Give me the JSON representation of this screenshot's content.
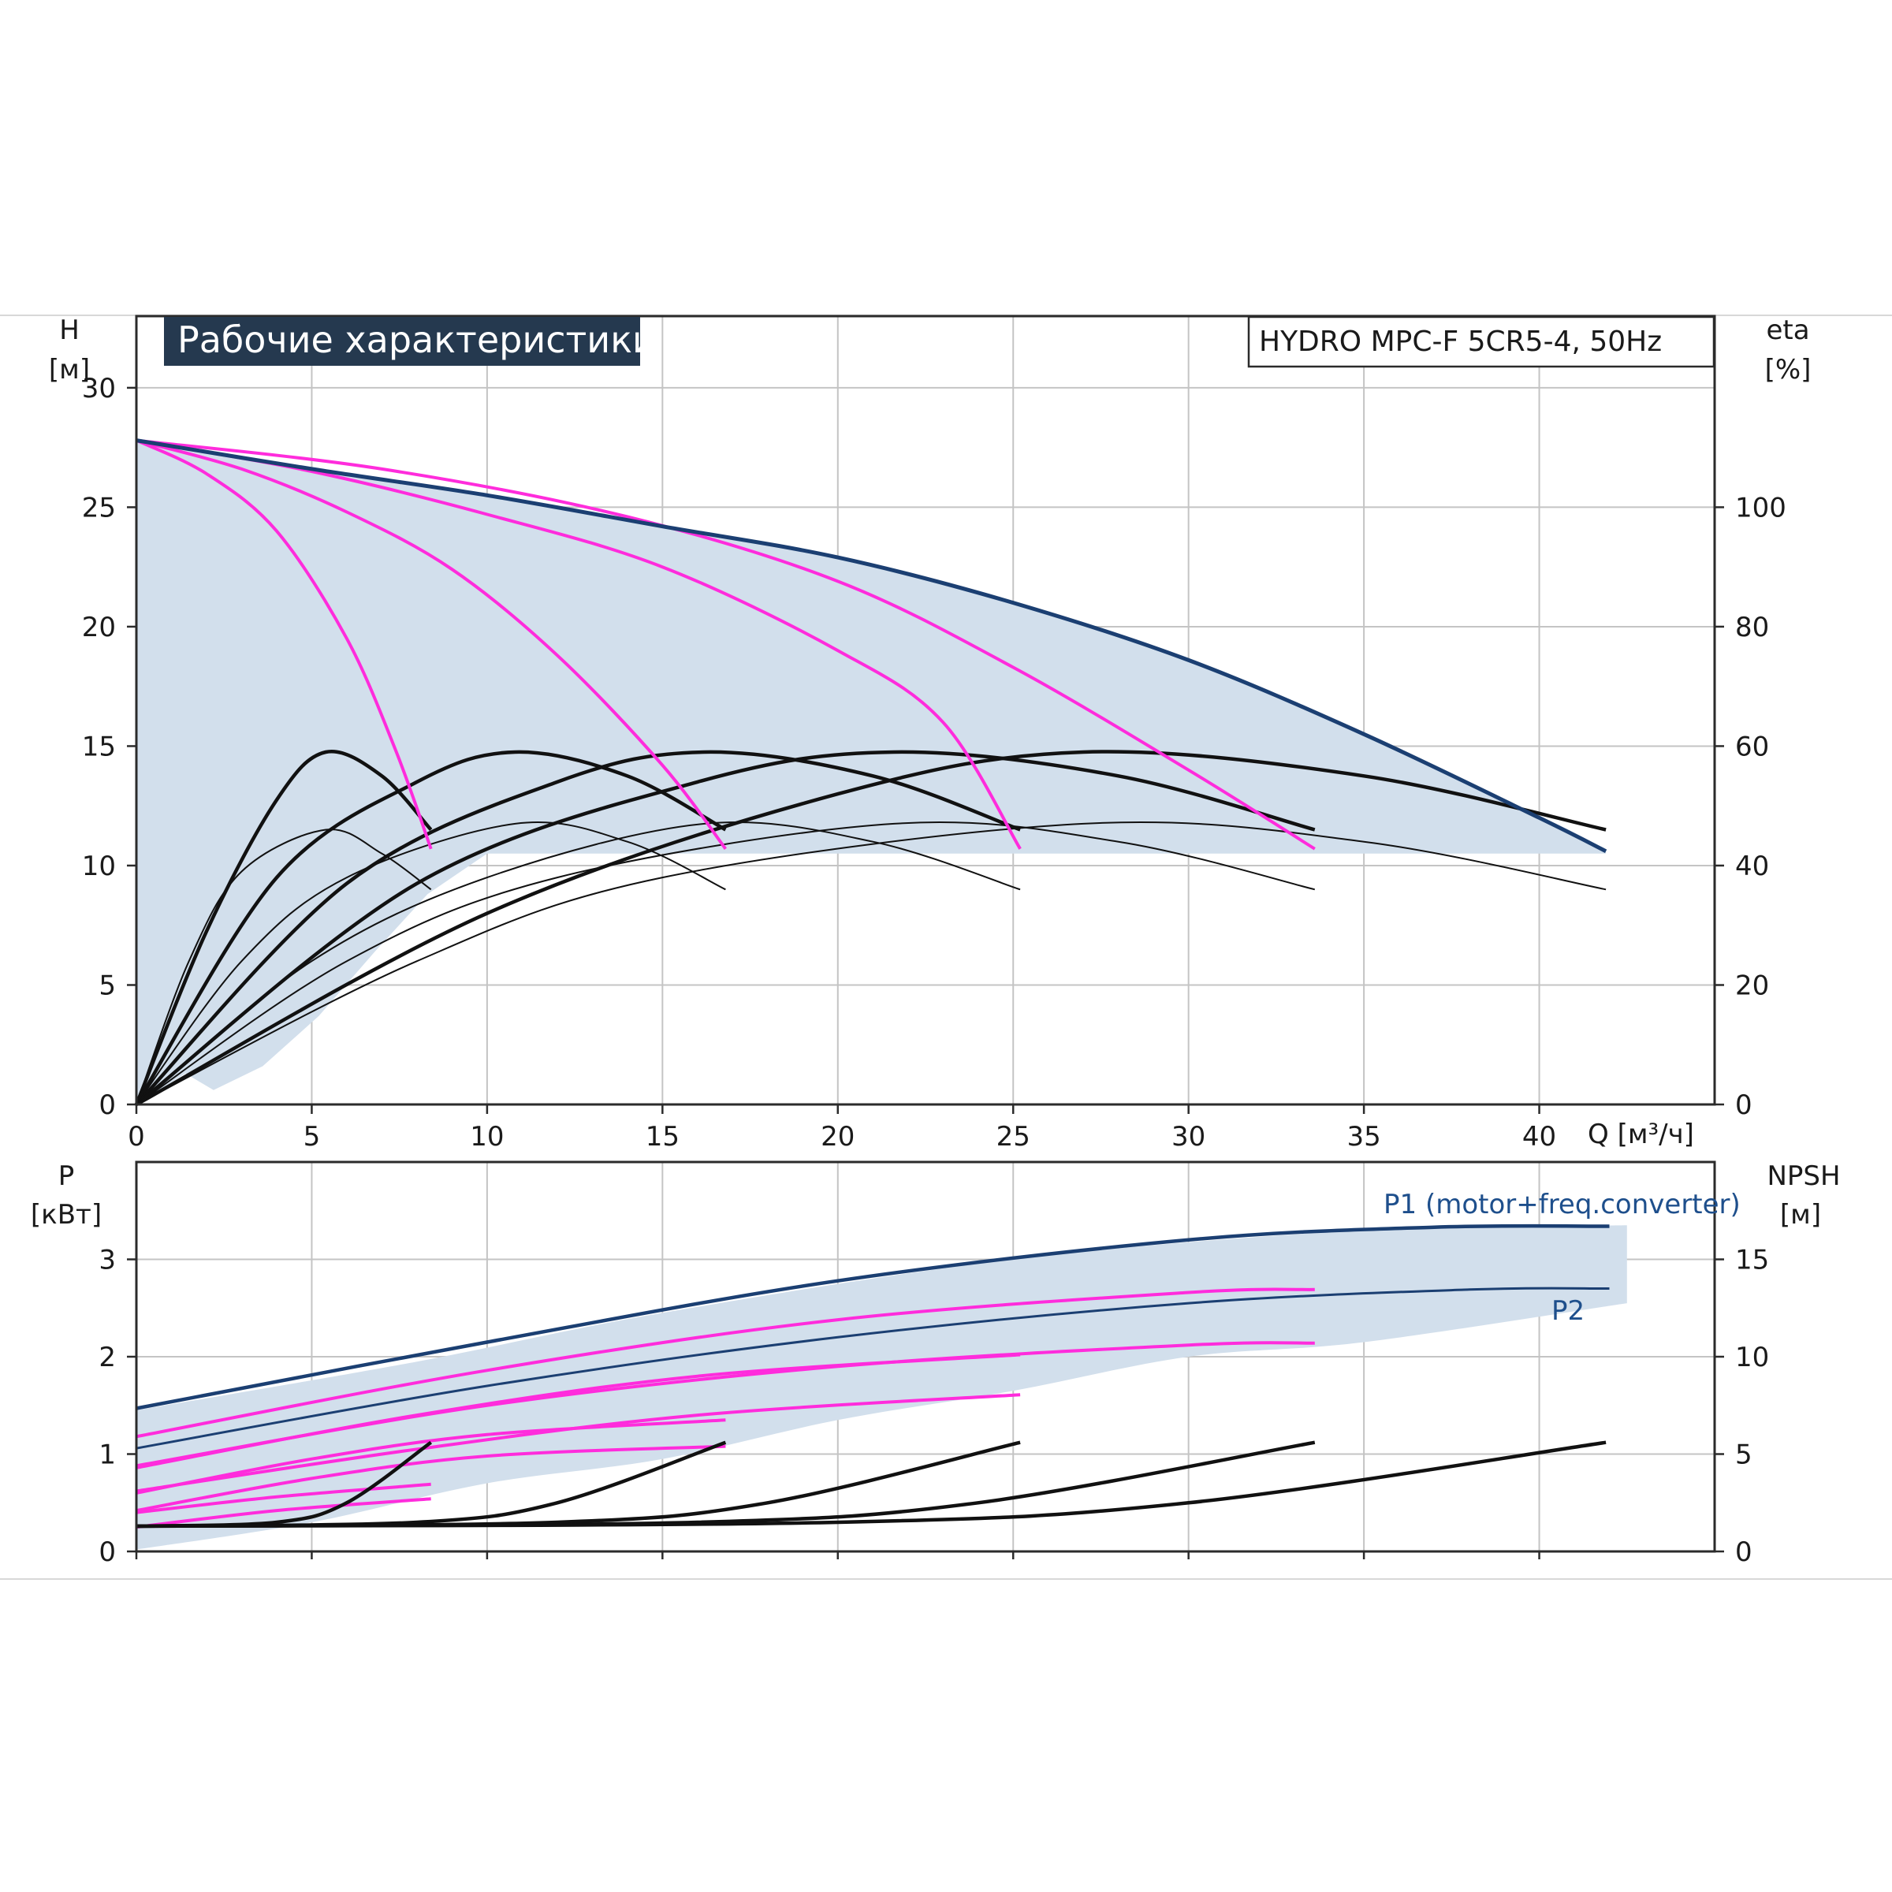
{
  "chart_data": [
    {
      "type": "line",
      "title": "Рабочие характеристики",
      "model": "HYDRO MPC-F 5CR5-4, 50Hz",
      "xlabel": "Q [м³/ч]",
      "ylabel_left": {
        "name": "H",
        "unit": "[м]"
      },
      "ylabel_right": {
        "name": "eta",
        "unit": "[%]"
      },
      "xlim": [
        0,
        45
      ],
      "ylim": [
        0,
        33
      ],
      "eta_lim": [
        0,
        132
      ],
      "x_ticks": [
        0,
        5,
        10,
        15,
        20,
        25,
        30,
        35,
        40
      ],
      "y_ticks": [
        0,
        5,
        10,
        15,
        20,
        25,
        30
      ],
      "eta_ticks": [
        0,
        20,
        40,
        60,
        80,
        100
      ],
      "colors": {
        "envelope": "#d2dfec",
        "max_curve": "#1b3f72",
        "speed_curve": "#ff2cdc",
        "eff_curve": "#111111",
        "grid": "#c4c4c4"
      },
      "operating_range": {
        "min_head": 10.5,
        "upper": [
          [
            0,
            27.8
          ],
          [
            5,
            26.6
          ],
          [
            10,
            25.5
          ],
          [
            15,
            24.2
          ],
          [
            20,
            22.9
          ],
          [
            25,
            21.0
          ],
          [
            30,
            18.6
          ],
          [
            35,
            15.5
          ],
          [
            40,
            12.0
          ],
          [
            41.9,
            10.6
          ]
        ],
        "lower": [
          [
            0,
            0
          ],
          [
            1.4,
            1.3
          ],
          [
            2.2,
            0.6
          ],
          [
            3.6,
            1.6
          ],
          [
            5.2,
            3.7
          ],
          [
            6.8,
            6.4
          ],
          [
            8.3,
            8.8
          ],
          [
            10,
            10.5
          ],
          [
            41.9,
            10.5
          ]
        ]
      },
      "max_speed_curve": [
        [
          0,
          27.8
        ],
        [
          5,
          26.6
        ],
        [
          10,
          25.5
        ],
        [
          15,
          24.2
        ],
        [
          20,
          22.9
        ],
        [
          25,
          21.0
        ],
        [
          30,
          18.6
        ],
        [
          35,
          15.5
        ],
        [
          40,
          12.0
        ],
        [
          41.9,
          10.6
        ]
      ],
      "speed_curves": [
        [
          [
            0,
            27.8
          ],
          [
            2,
            26.4
          ],
          [
            4,
            24.0
          ],
          [
            6,
            19.5
          ],
          [
            7.4,
            14.8
          ],
          [
            8.4,
            10.7
          ]
        ],
        [
          [
            0,
            27.8
          ],
          [
            3,
            26.6
          ],
          [
            6,
            24.8
          ],
          [
            9,
            22.4
          ],
          [
            12,
            18.8
          ],
          [
            15,
            14.2
          ],
          [
            16.8,
            10.7
          ]
        ],
        [
          [
            0,
            27.8
          ],
          [
            5,
            26.5
          ],
          [
            10,
            24.7
          ],
          [
            15,
            22.5
          ],
          [
            20,
            19.0
          ],
          [
            23,
            16.0
          ],
          [
            25.2,
            10.7
          ]
        ],
        [
          [
            0,
            27.8
          ],
          [
            7,
            26.6
          ],
          [
            14,
            24.6
          ],
          [
            20,
            21.9
          ],
          [
            25,
            18.3
          ],
          [
            30,
            14.0
          ],
          [
            33.6,
            10.7
          ]
        ]
      ],
      "system_efficiency_curves": [
        {
          "pumps": 1,
          "points": [
            [
              0,
              0
            ],
            [
              2,
              29
            ],
            [
              4,
              51
            ],
            [
              5.4,
              59
            ],
            [
              7,
              55
            ],
            [
              8.4,
              46
            ]
          ]
        },
        {
          "pumps": 2,
          "points": [
            [
              0,
              0
            ],
            [
              4,
              38
            ],
            [
              8,
              54
            ],
            [
              10.8,
              59
            ],
            [
              14,
              55
            ],
            [
              16.8,
              46
            ]
          ]
        },
        {
          "pumps": 3,
          "points": [
            [
              0,
              0
            ],
            [
              6,
              37
            ],
            [
              12,
              54
            ],
            [
              16.2,
              59
            ],
            [
              21,
              55
            ],
            [
              25.2,
              46
            ]
          ]
        },
        {
          "pumps": 4,
          "points": [
            [
              0,
              0
            ],
            [
              8,
              37
            ],
            [
              16,
              54
            ],
            [
              21.6,
              59
            ],
            [
              28,
              55
            ],
            [
              33.6,
              46
            ]
          ]
        },
        {
          "pumps": 5,
          "points": [
            [
              0,
              0
            ],
            [
              10,
              32
            ],
            [
              20,
              52
            ],
            [
              27,
              59
            ],
            [
              35,
              55
            ],
            [
              41.9,
              46
            ]
          ]
        }
      ],
      "pump_efficiency_curves": [
        {
          "pumps": 1,
          "points": [
            [
              0,
              0
            ],
            [
              1.5,
              24
            ],
            [
              3,
              39
            ],
            [
              5.4,
              46
            ],
            [
              7,
              42
            ],
            [
              8.4,
              36
            ]
          ]
        },
        {
          "pumps": 2,
          "points": [
            [
              0,
              0
            ],
            [
              3,
              24
            ],
            [
              6,
              38
            ],
            [
              10.8,
              47
            ],
            [
              14,
              44
            ],
            [
              16.8,
              36
            ]
          ]
        },
        {
          "pumps": 3,
          "points": [
            [
              0,
              0
            ],
            [
              5,
              24
            ],
            [
              10,
              38
            ],
            [
              16.2,
              47
            ],
            [
              21,
              44
            ],
            [
              25.2,
              36
            ]
          ]
        },
        {
          "pumps": 4,
          "points": [
            [
              0,
              0
            ],
            [
              6,
              24
            ],
            [
              12,
              38
            ],
            [
              21.6,
              47
            ],
            [
              28,
              44
            ],
            [
              33.6,
              36
            ]
          ]
        },
        {
          "pumps": 5,
          "points": [
            [
              0,
              0
            ],
            [
              8,
              24
            ],
            [
              15,
              38
            ],
            [
              27,
              47
            ],
            [
              35,
              44
            ],
            [
              41.9,
              36
            ]
          ]
        }
      ]
    },
    {
      "type": "line",
      "ylabel_left": {
        "name": "P",
        "unit": "[кВт]"
      },
      "ylabel_right": {
        "name": "NPSH",
        "unit": "[м]"
      },
      "xlim": [
        0,
        45
      ],
      "ylim": [
        0,
        4
      ],
      "npsh_lim": [
        0,
        20
      ],
      "y_ticks": [
        0,
        1,
        2,
        3
      ],
      "npsh_ticks": [
        0,
        5,
        10,
        15
      ],
      "envelope_upper": [
        [
          0,
          1.45
        ],
        [
          8,
          1.95
        ],
        [
          15,
          2.45
        ],
        [
          25,
          3.0
        ],
        [
          35,
          3.3
        ],
        [
          42.5,
          3.35
        ]
      ],
      "envelope_lower": [
        [
          0,
          0.02
        ],
        [
          5,
          0.3
        ],
        [
          10,
          0.7
        ],
        [
          15,
          0.95
        ],
        [
          20,
          1.35
        ],
        [
          25,
          1.65
        ],
        [
          30,
          2.0
        ],
        [
          35,
          2.15
        ],
        [
          42.5,
          2.55
        ]
      ],
      "series": [
        {
          "name": "P1 (motor+freq.converter)",
          "points": [
            [
              0,
              1.47
            ],
            [
              10,
              2.15
            ],
            [
              20,
              2.78
            ],
            [
              30,
              3.2
            ],
            [
              37,
              3.33
            ],
            [
              42,
              3.34
            ]
          ]
        },
        {
          "name": "P2",
          "points": [
            [
              0,
              1.06
            ],
            [
              10,
              1.7
            ],
            [
              20,
              2.2
            ],
            [
              30,
              2.55
            ],
            [
              38,
              2.69
            ],
            [
              42,
              2.7
            ]
          ]
        }
      ],
      "speed_power_curves": [
        [
          [
            0,
            1.18
          ],
          [
            10,
            1.86
          ],
          [
            20,
            2.38
          ],
          [
            30,
            2.66
          ],
          [
            33.6,
            2.69
          ]
        ],
        [
          [
            0,
            0.88
          ],
          [
            10,
            1.5
          ],
          [
            20,
            1.9
          ],
          [
            30,
            2.12
          ],
          [
            33.6,
            2.14
          ]
        ],
        [
          [
            0,
            0.86
          ],
          [
            8,
            1.4
          ],
          [
            16,
            1.8
          ],
          [
            25.2,
            2.02
          ]
        ],
        [
          [
            0,
            0.62
          ],
          [
            8,
            1.05
          ],
          [
            16,
            1.4
          ],
          [
            25.2,
            1.61
          ]
        ],
        [
          [
            0,
            0.6
          ],
          [
            5,
            0.95
          ],
          [
            10,
            1.2
          ],
          [
            16.8,
            1.35
          ]
        ],
        [
          [
            0,
            0.42
          ],
          [
            5,
            0.75
          ],
          [
            10,
            0.98
          ],
          [
            16.8,
            1.08
          ]
        ],
        [
          [
            0,
            0.4
          ],
          [
            4,
            0.56
          ],
          [
            8.4,
            0.69
          ]
        ],
        [
          [
            0,
            0.25
          ],
          [
            4,
            0.42
          ],
          [
            8.4,
            0.54
          ]
        ]
      ],
      "npsh_curves": [
        [
          [
            0,
            1.3
          ],
          [
            4,
            1.5
          ],
          [
            6,
            2.5
          ],
          [
            8.4,
            5.6
          ]
        ],
        [
          [
            0,
            1.3
          ],
          [
            8,
            1.5
          ],
          [
            12,
            2.5
          ],
          [
            16.8,
            5.6
          ]
        ],
        [
          [
            0,
            1.3
          ],
          [
            12,
            1.5
          ],
          [
            18,
            2.5
          ],
          [
            25.2,
            5.6
          ]
        ],
        [
          [
            0,
            1.3
          ],
          [
            16,
            1.5
          ],
          [
            24,
            2.5
          ],
          [
            33.6,
            5.6
          ]
        ],
        [
          [
            0,
            1.3
          ],
          [
            20,
            1.5
          ],
          [
            30,
            2.5
          ],
          [
            41.9,
            5.6
          ]
        ]
      ]
    }
  ]
}
